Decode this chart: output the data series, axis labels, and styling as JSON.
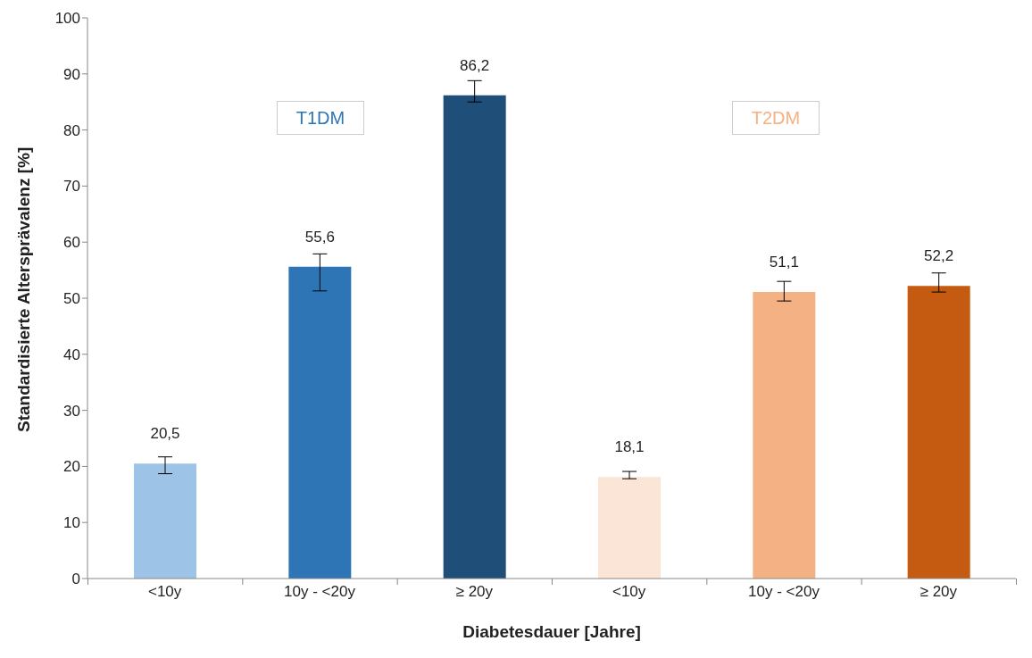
{
  "chart_data": {
    "type": "bar",
    "xlabel": "Diabetesdauer [Jahre]",
    "ylabel": "Standardisierte Altersprävalenz [%]",
    "categories": [
      "<10y",
      "10y - <20y",
      "≥ 20y",
      "<10y",
      "10y - <20y",
      "≥ 20y"
    ],
    "values": [
      20.5,
      55.6,
      86.2,
      18.1,
      51.1,
      52.2
    ],
    "value_labels": [
      "20,5",
      "55,6",
      "86,2",
      "18,1",
      "51,1",
      "52,2"
    ],
    "errors": [
      [
        18.7,
        21.7
      ],
      [
        51.3,
        57.9
      ],
      [
        85.0,
        88.8
      ],
      [
        17.8,
        19.1
      ],
      [
        49.5,
        53.0
      ],
      [
        51.1,
        54.5
      ]
    ],
    "colors": [
      "#9dc3e6",
      "#2e75b6",
      "#1f4e79",
      "#fbe5d6",
      "#f4b183",
      "#c55a11"
    ],
    "ylim": [
      0,
      100
    ],
    "yticks": [
      0,
      10,
      20,
      30,
      40,
      50,
      60,
      70,
      80,
      90,
      100
    ],
    "annotations": [
      "T1DM",
      "T2DM"
    ],
    "grid": false,
    "legend": false
  }
}
